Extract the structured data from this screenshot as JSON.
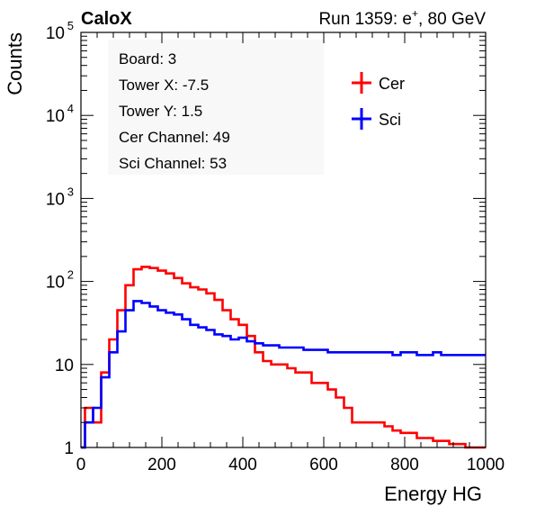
{
  "header": {
    "experiment": "CaloX",
    "run_prefix": "Run 1359: e",
    "run_sup": "+",
    "run_suffix": ", 80 GeV"
  },
  "info_box": {
    "lines": [
      "Board: 3",
      "Tower X: -7.5",
      "Tower Y: 1.5",
      "Cer Channel: 49",
      "Sci Channel: 53"
    ]
  },
  "chart_data": {
    "type": "line",
    "xlabel": "Energy HG",
    "ylabel": "Counts",
    "xlim": [
      0,
      1000
    ],
    "ylim": [
      1,
      100000
    ],
    "log_y": true,
    "grid": false,
    "legend_position": "top-right",
    "x_ticks": [
      "0",
      "200",
      "400",
      "600",
      "800",
      "1000"
    ],
    "y_ticks": [
      {
        "base": "1",
        "exp": ""
      },
      {
        "base": "10",
        "exp": ""
      },
      {
        "base": "10",
        "exp": "2"
      },
      {
        "base": "10",
        "exp": "3"
      },
      {
        "base": "10",
        "exp": "4"
      },
      {
        "base": "10",
        "exp": "5"
      }
    ],
    "x": [
      0,
      20,
      40,
      60,
      80,
      100,
      120,
      140,
      160,
      180,
      200,
      220,
      240,
      260,
      280,
      300,
      320,
      340,
      360,
      380,
      400,
      420,
      440,
      460,
      480,
      500,
      520,
      540,
      560,
      580,
      600,
      620,
      640,
      660,
      680,
      700,
      720,
      740,
      760,
      780,
      800,
      820,
      840,
      860,
      880,
      900,
      920,
      940,
      960,
      980,
      1000
    ],
    "series": [
      {
        "name": "Cer",
        "color": "#ff0000",
        "values": [
          1,
          3,
          2,
          8,
          20,
          45,
          90,
          140,
          150,
          145,
          135,
          125,
          110,
          95,
          85,
          80,
          72,
          60,
          45,
          35,
          30,
          22,
          14,
          11,
          10,
          10,
          9,
          8,
          8,
          6,
          6,
          5,
          4,
          3,
          2,
          2,
          2,
          2,
          1.8,
          1.6,
          1.5,
          1.5,
          1.3,
          1.3,
          1.2,
          1.2,
          1.1,
          1.1,
          1,
          1,
          1
        ]
      },
      {
        "name": "Sci",
        "color": "#0000ff",
        "values": [
          1,
          2,
          3,
          7,
          14,
          25,
          45,
          58,
          55,
          50,
          45,
          42,
          40,
          35,
          30,
          28,
          26,
          23,
          22,
          20,
          21,
          19,
          18,
          17,
          17,
          16,
          16,
          16,
          15,
          15,
          15,
          14,
          14,
          14,
          14,
          14,
          14,
          14,
          14,
          13,
          14,
          14,
          13,
          13,
          14,
          13,
          13,
          13,
          13,
          13,
          13
        ]
      }
    ]
  }
}
